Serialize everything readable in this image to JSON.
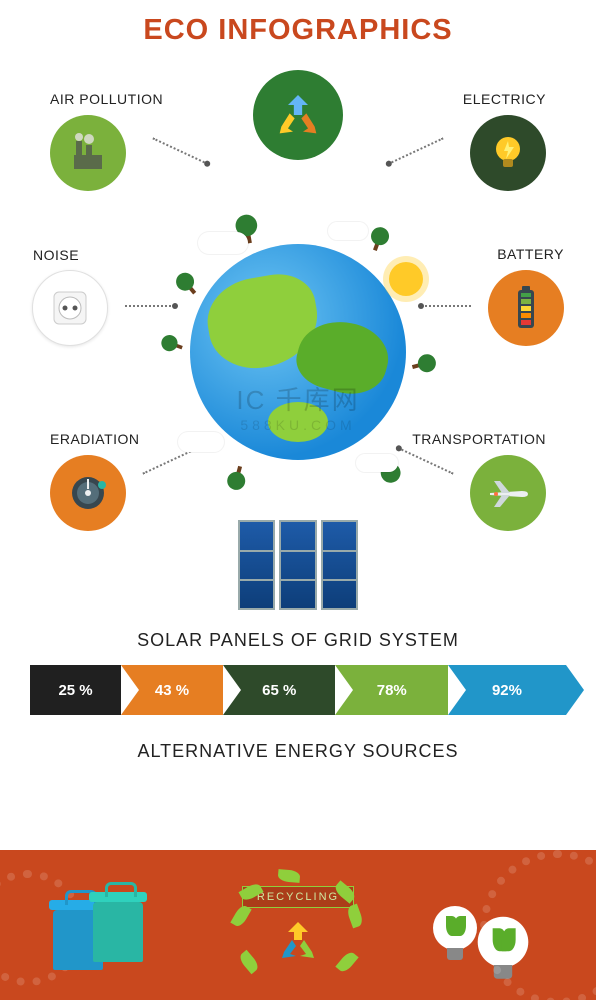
{
  "header": {
    "title": "ECO INFOGRAPHICS",
    "title_color": "#c9481e",
    "title_fontsize": 29,
    "background": "#ffffff"
  },
  "badges": {
    "recycle_top": {
      "bg": "#2e7d32",
      "arrow_fill": "#64b5f6",
      "arrow_accent_a": "#ffca28",
      "arrow_accent_b": "#e67e22"
    },
    "air_pollution": {
      "label": "AIR POLLUTION",
      "bg": "#7bb13c",
      "icon": "factory"
    },
    "electricity": {
      "label": "ELECTRICY",
      "bg": "#2e4a2a",
      "icon": "bulb",
      "icon_color": "#ffca28"
    },
    "noise": {
      "label": "NOISE",
      "bg": "#ffffff",
      "icon": "socket",
      "border": "#e0e0e0"
    },
    "battery": {
      "label": "BATTERY",
      "bg": "#e67e22",
      "icon": "battery"
    },
    "eradiation": {
      "label": "ERADIATION",
      "bg": "#e67e22",
      "icon": "meter"
    },
    "transportation": {
      "label": "TRANSPORTATION",
      "bg": "#7bb13c",
      "icon": "plane"
    }
  },
  "globe": {
    "water_light": "#6fc6f4",
    "water_dark": "#1a88d8",
    "land_light": "#8fcf3c",
    "land_dark": "#5aad2a",
    "cloud_color": "#ffffff",
    "sun_color": "#ffca28",
    "trunk_color": "#6b3e1d",
    "foliage_color": "#2e7d32"
  },
  "solar": {
    "section_label": "SOLAR PANELS OF GRID SYSTEM",
    "panel_fill_top": "#1e5ba8",
    "panel_fill_bottom": "#0d3e7a",
    "panel_frame": "#99aabb"
  },
  "arrows": {
    "label_fontsize": 15,
    "text_color": "#ffffff",
    "height": 50,
    "items": [
      {
        "value": "25 %",
        "pct": 17,
        "color": "#202020"
      },
      {
        "value": "43 %",
        "pct": 19,
        "color": "#e67e22"
      },
      {
        "value": "65 %",
        "pct": 21,
        "color": "#2e4a2a"
      },
      {
        "value": "78%",
        "pct": 21,
        "color": "#7bb13c"
      },
      {
        "value": "92%",
        "pct": 22,
        "color": "#2196c9"
      }
    ]
  },
  "alt_sources": {
    "label": "ALTERNATIVE ENERGY SOURCES"
  },
  "footer": {
    "background": "#c9481e",
    "recycling_label": "RECYCLING",
    "bin_color_a": "#2196c9",
    "bin_color_b": "#29b6a4",
    "leaf_color": "#8fcf3c",
    "bulb_fill": "#ffffff",
    "bulb_leaf": "#5aad2a",
    "tri_arrow_colors": [
      "#ffca28",
      "#2196c9",
      "#8fcf3c"
    ]
  },
  "watermark": {
    "line1": "IC 千库网",
    "line2": "588KU.COM"
  }
}
